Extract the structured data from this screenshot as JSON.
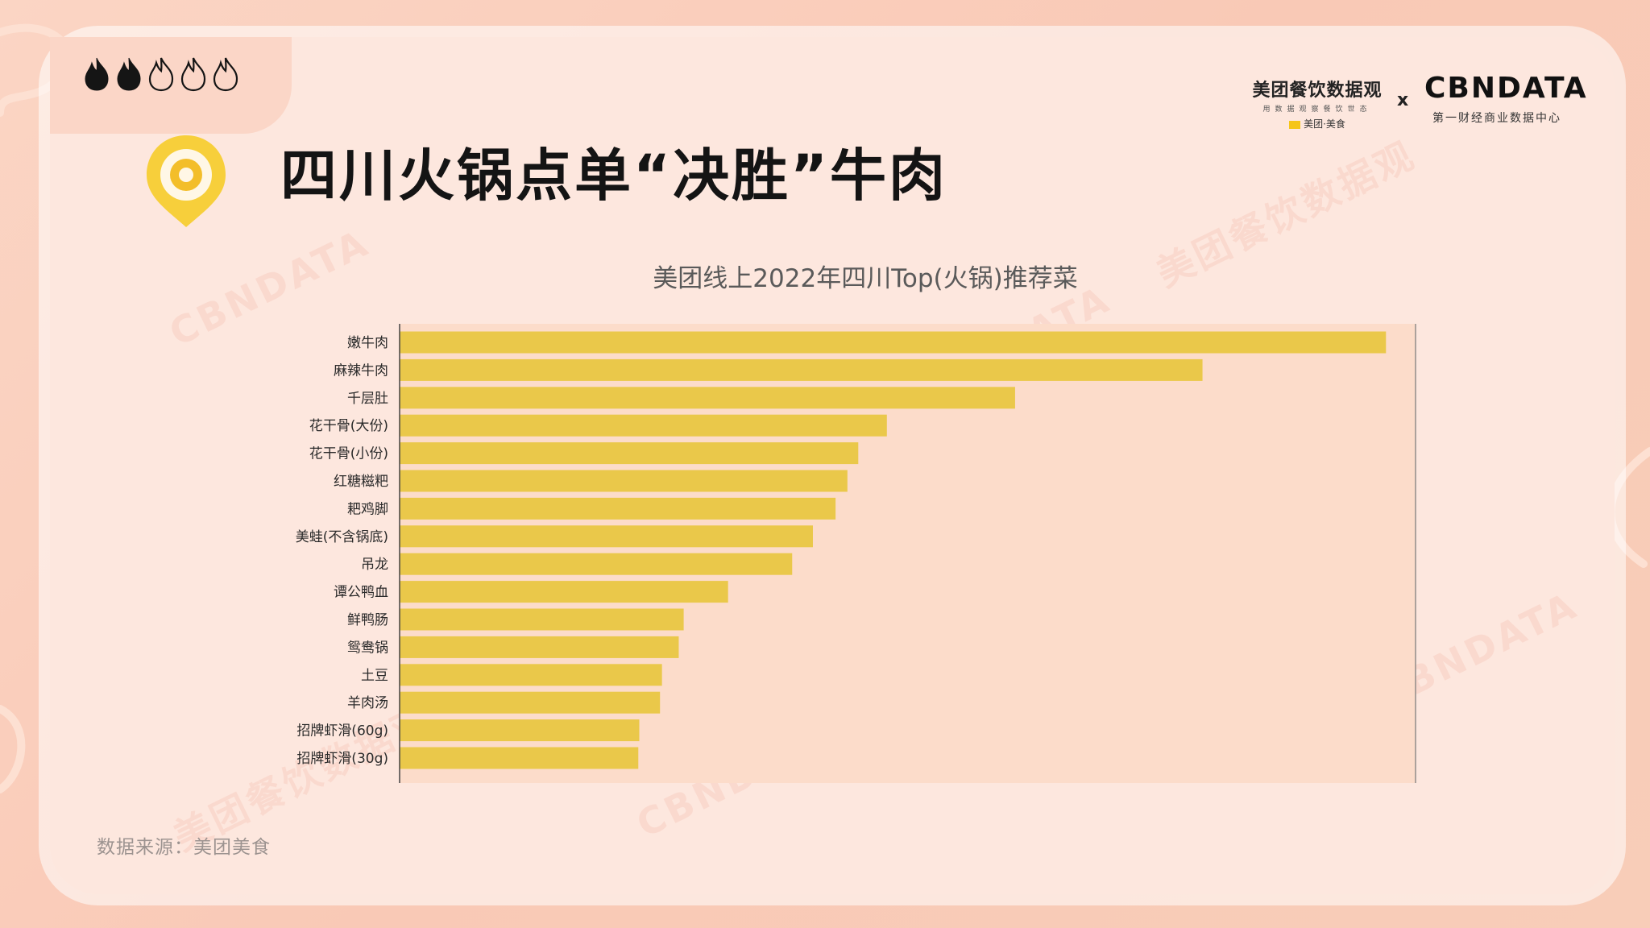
{
  "header": {
    "title": "四川火锅点单“决胜”牛肉",
    "flame_rating": {
      "filled": 2,
      "total": 5
    }
  },
  "logos": {
    "left_main": "美团餐饮数据观",
    "left_sub": "用数据观察餐饮世态",
    "left_brand": "美团·美食",
    "separator": "x",
    "right_main": "CBNDATA",
    "right_sub": "第一财经商业数据中心"
  },
  "watermarks": {
    "cbndata": "CBNDATA",
    "cbndata_sub": "第一财经商业数据中心",
    "meituan": "美团餐饮数据观"
  },
  "chart_data": {
    "type": "bar",
    "orientation": "horizontal",
    "title": "美团线上2022年四川Top(火锅)推荐菜",
    "categories": [
      "嫩牛肉",
      "麻辣牛肉",
      "千层肚",
      "花干骨(大份)",
      "花干骨(小份)",
      "红糖糍粑",
      "耙鸡脚",
      "美蛙(不含锅底)",
      "吊龙",
      "谭公鸭血",
      "鲜鸭肠",
      "鸳鸯锅",
      "土豆",
      "羊肉汤",
      "招牌虾滑(60g)",
      "招牌虾滑(30g)"
    ],
    "values": [
      100,
      81.4,
      62.4,
      49.4,
      46.5,
      45.4,
      44.2,
      41.9,
      39.8,
      33.3,
      28.8,
      28.3,
      26.6,
      26.4,
      24.3,
      24.2
    ],
    "xlim": [
      0,
      103
    ],
    "bar_color": "#eac84a",
    "plot_bg": "#fcdcca",
    "xlabel": "",
    "ylabel": ""
  },
  "footer": {
    "source": "数据来源：美团美食"
  }
}
